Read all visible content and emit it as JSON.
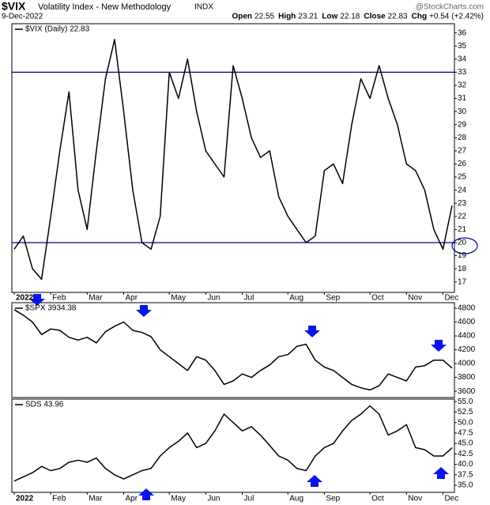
{
  "header": {
    "symbol": "$VIX",
    "name": "Volatility Index - New Methodology",
    "exchange": "INDX",
    "date": "9-Dec-2022",
    "quote": [
      {
        "label": "Open",
        "value": 22.55
      },
      {
        "label": "High",
        "value": 23.21
      },
      {
        "label": "Low",
        "value": 22.18
      },
      {
        "label": "Close",
        "value": 22.83
      },
      {
        "label": "Chg",
        "value": "+0.54 (+2.42%)"
      }
    ],
    "watermark": "@StockCharts.com"
  },
  "chart_data": [
    {
      "type": "line",
      "legend": "$VIX (Daily) 22.83",
      "categories": [
        "2022",
        null,
        null,
        null,
        "Feb",
        null,
        null,
        null,
        "Mar",
        null,
        null,
        null,
        "Apr",
        null,
        null,
        null,
        null,
        "May",
        null,
        null,
        null,
        "Jun",
        null,
        null,
        null,
        "Jul",
        null,
        null,
        null,
        null,
        "Aug",
        null,
        null,
        null,
        "Sep",
        null,
        null,
        null,
        null,
        "Oct",
        null,
        null,
        null,
        "Nov",
        null,
        null,
        null,
        "Dec",
        null
      ],
      "series": [
        {
          "name": "$VIX",
          "color": "#000000",
          "values": [
            19.5,
            20.5,
            18,
            17.2,
            22,
            27,
            31.5,
            24,
            21,
            27,
            32.5,
            35.5,
            30,
            24,
            20,
            19.5,
            22,
            33,
            31,
            34,
            30,
            27,
            26,
            25,
            33.5,
            31,
            28,
            26.5,
            27,
            23.5,
            22,
            21,
            20,
            20.5,
            25.5,
            26,
            24.5,
            29,
            32.5,
            31,
            33.5,
            31,
            29,
            26,
            25.5,
            24,
            21,
            19.5,
            22.83
          ]
        }
      ],
      "hlines": [
        33,
        20
      ],
      "hline_color": "#000080",
      "ylim": [
        16.2,
        36.7
      ],
      "yticks": [
        17,
        18,
        19,
        20,
        21,
        22,
        23,
        24,
        25,
        26,
        27,
        28,
        29,
        30,
        31,
        32,
        33,
        34,
        35,
        36
      ],
      "grid": false
    },
    {
      "type": "line",
      "legend": "$SPX 3934.38",
      "series": [
        {
          "name": "$SPX",
          "color": "#000000",
          "values": [
            4780,
            4700,
            4600,
            4420,
            4500,
            4480,
            4380,
            4340,
            4380,
            4300,
            4460,
            4540,
            4600,
            4480,
            4450,
            4390,
            4200,
            4100,
            4000,
            3900,
            4100,
            4050,
            3900,
            3700,
            3750,
            3850,
            3800,
            3900,
            3980,
            4100,
            4130,
            4250,
            4280,
            4050,
            3950,
            3900,
            3800,
            3700,
            3650,
            3620,
            3680,
            3850,
            3800,
            3750,
            3950,
            3970,
            4050,
            4050,
            3934.38
          ]
        }
      ],
      "ylim": [
        3510,
        4880
      ],
      "yticks": [
        3600,
        3800,
        4000,
        4200,
        4400,
        4600,
        4800
      ],
      "grid": false
    },
    {
      "type": "line",
      "legend": "SDS 43.96",
      "categories": [
        "2022",
        null,
        null,
        null,
        "Feb",
        null,
        null,
        null,
        "Mar",
        null,
        null,
        null,
        "Apr",
        null,
        null,
        null,
        null,
        "May",
        null,
        null,
        null,
        "Jun",
        null,
        null,
        null,
        "Jul",
        null,
        null,
        null,
        null,
        "Aug",
        null,
        null,
        null,
        "Sep",
        null,
        null,
        null,
        null,
        "Oct",
        null,
        null,
        null,
        "Nov",
        null,
        null,
        null,
        "Dec",
        null
      ],
      "series": [
        {
          "name": "SDS",
          "color": "#000000",
          "values": [
            36,
            37,
            38,
            39.5,
            38.5,
            39,
            40.5,
            41,
            40.5,
            41.5,
            39,
            37.5,
            36.5,
            37.5,
            38.5,
            39,
            42,
            44,
            45.5,
            47.5,
            44,
            45,
            48,
            52,
            50,
            48,
            49,
            47,
            44.5,
            42,
            41,
            39,
            38.5,
            42,
            44,
            45,
            48,
            50.5,
            52,
            54,
            52,
            47,
            48,
            49.5,
            44,
            43.5,
            42,
            42,
            43.96
          ]
        }
      ],
      "ylim": [
        33.3,
        55.6
      ],
      "yticks": [
        {
          "value": 35,
          "label": "35.0"
        },
        37.5,
        {
          "value": 40,
          "label": "40.0"
        },
        42.5,
        {
          "value": 45,
          "label": "45.0"
        },
        47.5,
        {
          "value": 50,
          "label": "50.0"
        },
        52.5,
        {
          "value": 55,
          "label": "55.0"
        }
      ],
      "grid": false
    }
  ]
}
